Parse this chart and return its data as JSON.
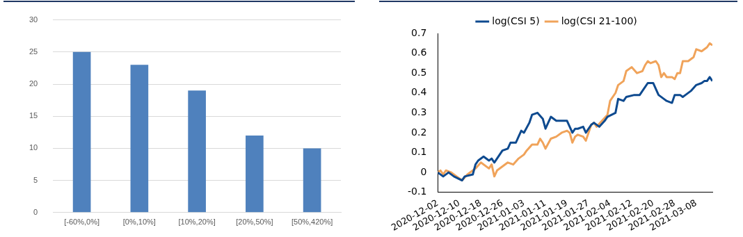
{
  "chart_data": [
    {
      "type": "bar",
      "categories": [
        "[-60%,0%]",
        "[0%,10%]",
        "[10%,20%]",
        "[20%,50%]",
        "[50%,420%]"
      ],
      "values": [
        25,
        23,
        19,
        12,
        10
      ],
      "color": "#4f81bd",
      "ylim": [
        0,
        30
      ],
      "yticks": [
        0,
        5,
        10,
        15,
        20,
        25,
        30
      ],
      "grid": "y"
    },
    {
      "type": "line",
      "xlim": [
        "2020-12-02",
        "2021-03-14"
      ],
      "xticks": [
        "2020-12-02",
        "2020-12-10",
        "2020-12-18",
        "2020-12-26",
        "2021-01-03",
        "2021-01-11",
        "2021-01-19",
        "2021-01-27",
        "2021-02-04",
        "2021-02-12",
        "2021-02-20",
        "2021-02-28",
        "2021-03-08"
      ],
      "ylim": [
        -0.1,
        0.7
      ],
      "yticks": [
        -0.1,
        0,
        0.1,
        0.2,
        0.3,
        0.4,
        0.5,
        0.6,
        0.7
      ],
      "legend": "top",
      "series": [
        {
          "name": "log(CSI 5)",
          "color": "#0e4a8f",
          "x": [
            "2020-12-02",
            "2020-12-04",
            "2020-12-06",
            "2020-12-08",
            "2020-12-11",
            "2020-12-12",
            "2020-12-15",
            "2020-12-16",
            "2020-12-17",
            "2020-12-19",
            "2020-12-21",
            "2020-12-22",
            "2020-12-23",
            "2020-12-26",
            "2020-12-28",
            "2020-12-29",
            "2020-12-31",
            "2021-01-01",
            "2021-01-02",
            "2021-01-03",
            "2021-01-05",
            "2021-01-06",
            "2021-01-08",
            "2021-01-10",
            "2021-01-11",
            "2021-01-13",
            "2021-01-15",
            "2021-01-17",
            "2021-01-19",
            "2021-01-21",
            "2021-01-22",
            "2021-01-23",
            "2021-01-25",
            "2021-01-26",
            "2021-01-28",
            "2021-01-29",
            "2021-01-31",
            "2021-02-02",
            "2021-02-03",
            "2021-02-06",
            "2021-02-07",
            "2021-02-09",
            "2021-02-10",
            "2021-02-13",
            "2021-02-15",
            "2021-02-16",
            "2021-02-18",
            "2021-02-20",
            "2021-02-22",
            "2021-02-24",
            "2021-02-25",
            "2021-02-27",
            "2021-02-28",
            "2021-03-02",
            "2021-03-03",
            "2021-03-04",
            "2021-03-06",
            "2021-03-08",
            "2021-03-10",
            "2021-03-11",
            "2021-03-12",
            "2021-03-13",
            "2021-03-14"
          ],
          "values": [
            0,
            -0.02,
            0,
            -0.02,
            -0.04,
            -0.02,
            -0.01,
            0.04,
            0.06,
            0.08,
            0.06,
            0.07,
            0.05,
            0.11,
            0.12,
            0.15,
            0.15,
            0.18,
            0.21,
            0.2,
            0.25,
            0.29,
            0.3,
            0.27,
            0.22,
            0.28,
            0.26,
            0.26,
            0.26,
            0.2,
            0.22,
            0.22,
            0.23,
            0.2,
            0.24,
            0.25,
            0.23,
            0.26,
            0.28,
            0.3,
            0.37,
            0.36,
            0.38,
            0.39,
            0.39,
            0.41,
            0.45,
            0.45,
            0.39,
            0.37,
            0.36,
            0.35,
            0.39,
            0.39,
            0.38,
            0.39,
            0.41,
            0.44,
            0.45,
            0.46,
            0.46,
            0.48,
            0.46
          ]
        },
        {
          "name": "log(CSI 21-100)",
          "color": "#f0a35a",
          "x": [
            "2020-12-02",
            "2020-12-03",
            "2020-12-04",
            "2020-12-05",
            "2020-12-07",
            "2020-12-09",
            "2020-12-11",
            "2020-12-13",
            "2020-12-15",
            "2020-12-16",
            "2020-12-18",
            "2020-12-21",
            "2020-12-22",
            "2020-12-23",
            "2020-12-24",
            "2020-12-26",
            "2020-12-28",
            "2020-12-30",
            "2021-01-01",
            "2021-01-03",
            "2021-01-04",
            "2021-01-06",
            "2021-01-08",
            "2021-01-09",
            "2021-01-10",
            "2021-01-11",
            "2021-01-13",
            "2021-01-15",
            "2021-01-17",
            "2021-01-19",
            "2021-01-20",
            "2021-01-21",
            "2021-01-22",
            "2021-01-23",
            "2021-01-25",
            "2021-01-26",
            "2021-01-28",
            "2021-01-29",
            "2021-01-30",
            "2021-02-01",
            "2021-02-03",
            "2021-02-04",
            "2021-02-06",
            "2021-02-07",
            "2021-02-09",
            "2021-02-10",
            "2021-02-12",
            "2021-02-14",
            "2021-02-16",
            "2021-02-17",
            "2021-02-18",
            "2021-02-19",
            "2021-02-21",
            "2021-02-22",
            "2021-02-23",
            "2021-02-24",
            "2021-02-25",
            "2021-02-27",
            "2021-02-28",
            "2021-03-01",
            "2021-03-02",
            "2021-03-03",
            "2021-03-05",
            "2021-03-07",
            "2021-03-08",
            "2021-03-10",
            "2021-03-12",
            "2021-03-13",
            "2021-03-14"
          ],
          "values": [
            0,
            0.01,
            -0.01,
            0.01,
            0,
            -0.02,
            -0.04,
            -0.01,
            0.01,
            0.02,
            0.05,
            0.02,
            0.04,
            -0.02,
            0.01,
            0.03,
            0.05,
            0.04,
            0.07,
            0.09,
            0.11,
            0.14,
            0.14,
            0.17,
            0.15,
            0.12,
            0.17,
            0.18,
            0.2,
            0.21,
            0.2,
            0.15,
            0.18,
            0.19,
            0.18,
            0.16,
            0.24,
            0.25,
            0.23,
            0.26,
            0.29,
            0.36,
            0.4,
            0.44,
            0.46,
            0.51,
            0.53,
            0.5,
            0.51,
            0.54,
            0.56,
            0.55,
            0.56,
            0.54,
            0.48,
            0.5,
            0.48,
            0.48,
            0.47,
            0.5,
            0.5,
            0.56,
            0.56,
            0.58,
            0.62,
            0.61,
            0.63,
            0.65,
            0.64
          ]
        }
      ]
    }
  ]
}
